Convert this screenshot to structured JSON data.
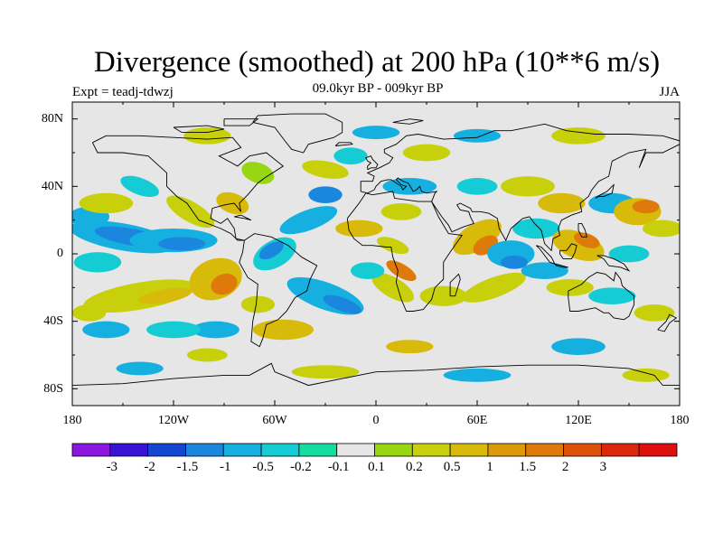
{
  "header": {
    "title": "Divergence (smoothed) at 200 hPa (10**6 m/s)",
    "subtitle": "09.0kyr BP - 009kyr BP",
    "left_label": "Expt = teadj-tdwzj",
    "right_label": "JJA"
  },
  "axes": {
    "lat_labels": [
      "80N",
      "40N",
      "0",
      "40S",
      "80S"
    ],
    "lon_labels": [
      "180",
      "120W",
      "60W",
      "0",
      "60E",
      "120E",
      "180"
    ]
  },
  "colorbar": {
    "colors": [
      "#8a16e0",
      "#3a14d6",
      "#1446d2",
      "#1a86dd",
      "#16b0e0",
      "#16ccd4",
      "#14dca0",
      "#e6e6e6",
      "#98d612",
      "#c8d00c",
      "#d8ba0a",
      "#dc9a0a",
      "#de7a0a",
      "#dc520a",
      "#dc280a",
      "#e00f0f"
    ],
    "labels": [
      "-3",
      "-2",
      "-1.5",
      "-1",
      "-0.5",
      "-0.2",
      "-0.1",
      "0.1",
      "0.2",
      "0.5",
      "1",
      "1.5",
      "2",
      "3"
    ]
  },
  "chart_data": {
    "type": "heatmap",
    "title": "Divergence (smoothed) at 200 hPa (10**6 m/s)",
    "subtitle": "09.0kyr BP - 009kyr BP",
    "season": "JJA",
    "experiment": "teadj-tdwzj",
    "units": "10**6 m/s",
    "projection": "cylindrical equidistant",
    "lon_range": [
      -180,
      180
    ],
    "lat_range": [
      -90,
      90
    ],
    "contour_levels": [
      -3,
      -2,
      -1.5,
      -1,
      -0.5,
      -0.2,
      -0.1,
      0.1,
      0.2,
      0.5,
      1,
      1.5,
      2,
      3
    ],
    "xlabel": "",
    "ylabel": ""
  }
}
